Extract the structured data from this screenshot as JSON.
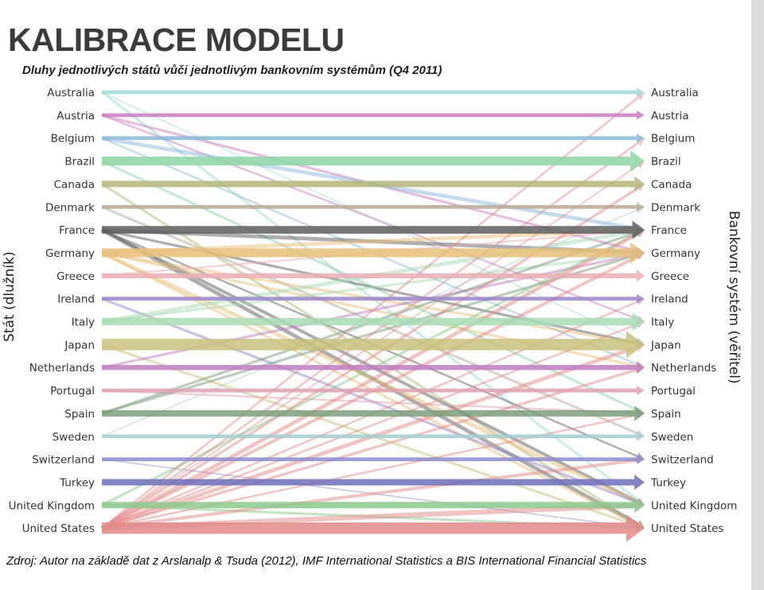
{
  "title": "KALIBRACE MODELU",
  "subtitle": "Dluhy  jednotlivých států vůči jednotlivým bankovním systémům (Q4 2011)",
  "left_axis_label": "Stát (dlužník)",
  "right_axis_label": "Bankovní systém (věřitel)",
  "source_text": "Zdroj: Autor na základě dat  z Arslanalp & Tsuda (2012), IMF International Statistics a BIS International Financial Statistics",
  "countries": [
    "Australia",
    "Austria",
    "Belgium",
    "Brazil",
    "Canada",
    "Denmark",
    "France",
    "Germany",
    "Greece",
    "Ireland",
    "Italy",
    "Japan",
    "Netherlands",
    "Portugal",
    "Spain",
    "Sweden",
    "Switzerland",
    "Turkey",
    "United Kingdom",
    "United States"
  ],
  "country_colors": [
    "#9fd9d6",
    "#c97fc0",
    "#8cb9d9",
    "#8fd6a6",
    "#b5b57a",
    "#b7aa96",
    "#5e5e5e",
    "#e8c078",
    "#eaaeb6",
    "#9a86c9",
    "#a7dcb6",
    "#c8c27c",
    "#c07ec1",
    "#dda2b0",
    "#7d9e7e",
    "#a6ccd0",
    "#8d8dcf",
    "#6f6fba",
    "#8cc98e",
    "#e38a8a"
  ],
  "flows": [
    {
      "from": "Australia",
      "to": "Australia",
      "weight": 3
    },
    {
      "from": "Australia",
      "to": "United Kingdom",
      "weight": 2
    },
    {
      "from": "Australia",
      "to": "Japan",
      "weight": 1
    },
    {
      "from": "Austria",
      "to": "Austria",
      "weight": 3
    },
    {
      "from": "Austria",
      "to": "Germany",
      "weight": 2
    },
    {
      "from": "Austria",
      "to": "Italy",
      "weight": 1.5
    },
    {
      "from": "Belgium",
      "to": "Belgium",
      "weight": 3
    },
    {
      "from": "Belgium",
      "to": "France",
      "weight": 3
    },
    {
      "from": "Belgium",
      "to": "Netherlands",
      "weight": 1.5
    },
    {
      "from": "Brazil",
      "to": "Brazil",
      "weight": 7
    },
    {
      "from": "Brazil",
      "to": "Spain",
      "weight": 2
    },
    {
      "from": "Canada",
      "to": "Canada",
      "weight": 5
    },
    {
      "from": "Canada",
      "to": "United States",
      "weight": 2
    },
    {
      "from": "Denmark",
      "to": "Denmark",
      "weight": 3
    },
    {
      "from": "Denmark",
      "to": "Sweden",
      "weight": 2
    },
    {
      "from": "France",
      "to": "France",
      "weight": 6
    },
    {
      "from": "France",
      "to": "Germany",
      "weight": 3
    },
    {
      "from": "France",
      "to": "Japan",
      "weight": 2
    },
    {
      "from": "France",
      "to": "United Kingdom",
      "weight": 2.5
    },
    {
      "from": "France",
      "to": "United States",
      "weight": 3
    },
    {
      "from": "France",
      "to": "Switzerland",
      "weight": 1.5
    },
    {
      "from": "Germany",
      "to": "Germany",
      "weight": 7
    },
    {
      "from": "Germany",
      "to": "France",
      "weight": 3
    },
    {
      "from": "Germany",
      "to": "Japan",
      "weight": 2
    },
    {
      "from": "Germany",
      "to": "United Kingdom",
      "weight": 3
    },
    {
      "from": "Germany",
      "to": "United States",
      "weight": 2
    },
    {
      "from": "Germany",
      "to": "Netherlands",
      "weight": 2
    },
    {
      "from": "Greece",
      "to": "Greece",
      "weight": 4
    },
    {
      "from": "Greece",
      "to": "France",
      "weight": 1.5
    },
    {
      "from": "Ireland",
      "to": "Ireland",
      "weight": 3
    },
    {
      "from": "Ireland",
      "to": "United Kingdom",
      "weight": 2
    },
    {
      "from": "Italy",
      "to": "Italy",
      "weight": 6
    },
    {
      "from": "Italy",
      "to": "France",
      "weight": 3
    },
    {
      "from": "Italy",
      "to": "Germany",
      "weight": 2
    },
    {
      "from": "Japan",
      "to": "Japan",
      "weight": 9
    },
    {
      "from": "Japan",
      "to": "United States",
      "weight": 2
    },
    {
      "from": "Netherlands",
      "to": "Netherlands",
      "weight": 4
    },
    {
      "from": "Netherlands",
      "to": "Germany",
      "weight": 2
    },
    {
      "from": "Portugal",
      "to": "Portugal",
      "weight": 3
    },
    {
      "from": "Portugal",
      "to": "Spain",
      "weight": 1.5
    },
    {
      "from": "Spain",
      "to": "Spain",
      "weight": 5
    },
    {
      "from": "Spain",
      "to": "France",
      "weight": 2
    },
    {
      "from": "Spain",
      "to": "Germany",
      "weight": 2
    },
    {
      "from": "Sweden",
      "to": "Sweden",
      "weight": 3
    },
    {
      "from": "Sweden",
      "to": "Denmark",
      "weight": 1
    },
    {
      "from": "Switzerland",
      "to": "Switzerland",
      "weight": 3
    },
    {
      "from": "Switzerland",
      "to": "United States",
      "weight": 1
    },
    {
      "from": "Turkey",
      "to": "Turkey",
      "weight": 5
    },
    {
      "from": "United Kingdom",
      "to": "United Kingdom",
      "weight": 5
    },
    {
      "from": "United Kingdom",
      "to": "United States",
      "weight": 2
    },
    {
      "from": "United Kingdom",
      "to": "France",
      "weight": 2
    },
    {
      "from": "United States",
      "to": "United States",
      "weight": 9
    },
    {
      "from": "United States",
      "to": "United Kingdom",
      "weight": 4
    },
    {
      "from": "United States",
      "to": "Japan",
      "weight": 3
    },
    {
      "from": "United States",
      "to": "France",
      "weight": 3
    },
    {
      "from": "United States",
      "to": "Germany",
      "weight": 2.5
    },
    {
      "from": "United States",
      "to": "Switzerland",
      "weight": 2.5
    },
    {
      "from": "United States",
      "to": "Canada",
      "weight": 2
    },
    {
      "from": "United States",
      "to": "Netherlands",
      "weight": 2
    },
    {
      "from": "United States",
      "to": "Australia",
      "weight": 1.5
    },
    {
      "from": "United States",
      "to": "Spain",
      "weight": 1.5
    },
    {
      "from": "United States",
      "to": "Italy",
      "weight": 1.5
    },
    {
      "from": "United States",
      "to": "Belgium",
      "weight": 1.5
    },
    {
      "from": "United States",
      "to": "Ireland",
      "weight": 1.5
    },
    {
      "from": "United States",
      "to": "Brazil",
      "weight": 1
    }
  ]
}
